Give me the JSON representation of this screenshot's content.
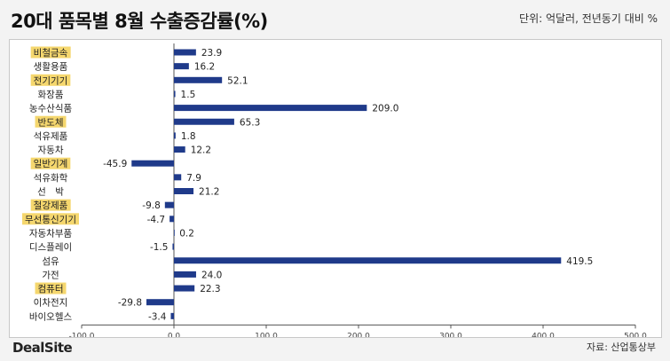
{
  "header": {
    "title": "20대 품목별 8월  수출증감률(%)",
    "unit": "단위: 억달러, 전년동기 대비 %"
  },
  "footer": {
    "brand": "DealSite",
    "source": "자료: 산업통상부"
  },
  "colors": {
    "bar": "#1f3a8a",
    "highlight": "#f5d76e",
    "axis": "#555555"
  },
  "chart_data": {
    "type": "bar",
    "orientation": "horizontal",
    "categories": [
      "비철금속",
      "생활용품",
      "전기기기",
      "화장품",
      "농수산식품",
      "반도체",
      "석유제품",
      "자동차",
      "일반기계",
      "석유화학",
      "선　박",
      "철강제품",
      "무선통신기기",
      "자동차부품",
      "디스플레이",
      "섬유",
      "가전",
      "컴퓨터",
      "이차전지",
      "바이오헬스"
    ],
    "highlighted": [
      "비철금속",
      "전기기기",
      "반도체",
      "일반기계",
      "철강제품",
      "무선통신기기",
      "컴퓨터"
    ],
    "values": [
      23.9,
      16.2,
      52.1,
      1.5,
      209.0,
      65.3,
      1.8,
      12.2,
      -45.9,
      7.9,
      21.2,
      -9.8,
      -4.7,
      0.2,
      -1.5,
      419.5,
      24.0,
      22.3,
      -29.8,
      -3.4
    ],
    "value_labels": [
      "23.9",
      "16.2",
      "52.1",
      "1.5",
      "209.0",
      "65.3",
      "1.8",
      "12.2",
      "-45.9",
      "7.9",
      "21.2",
      "-9.8",
      "-4.7",
      "0.2",
      "-1.5",
      "419.5",
      "24.0",
      "22.3",
      "-29.8",
      "-3.4"
    ],
    "xlim": [
      -100,
      500
    ],
    "xticks": [
      -100,
      0,
      100,
      200,
      300,
      400,
      500
    ],
    "xtick_labels": [
      "-100.0",
      "0.0",
      "100.0",
      "200.0",
      "300.0",
      "400.0",
      "500.0"
    ],
    "title": "20대 품목별 8월  수출증감률(%)",
    "xlabel": "",
    "ylabel": "",
    "grid": false,
    "legend": "none"
  }
}
